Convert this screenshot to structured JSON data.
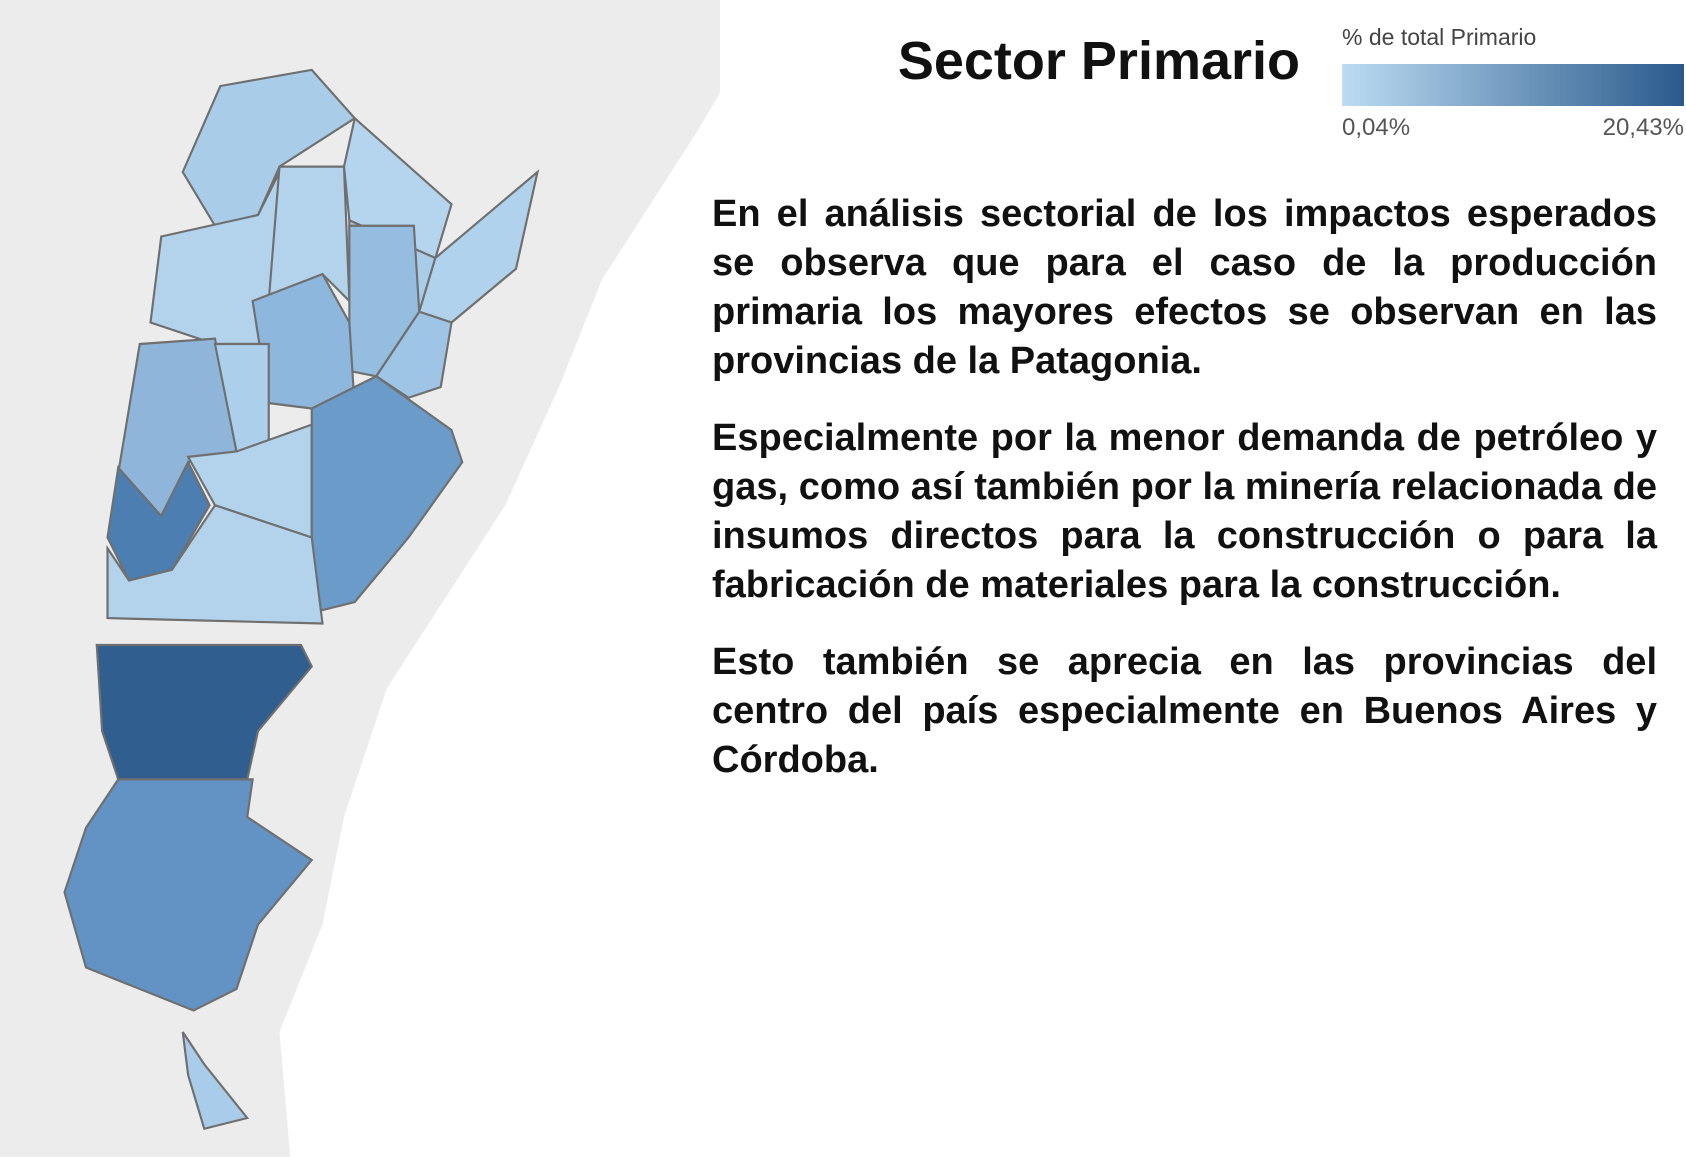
{
  "title": "Sector Primario",
  "legend": {
    "title": "% de total Primario",
    "min_label": "0,04%",
    "max_label": "20,43%"
  },
  "paragraphs": [
    "En el análisis sectorial de los impactos esperados se observa que para el caso de la producción primaria los mayores efectos se observan en las provincias de la Patagonia.",
    "Especialmente por la menor demanda de petróleo y gas, como así también por la minería relacionada de insumos directos para la construcción o para la fabricación de materiales para la construcción.",
    "Esto también se aprecia en las provincias del centro del país especialmente en Buenos Aires y Córdoba."
  ]
}
